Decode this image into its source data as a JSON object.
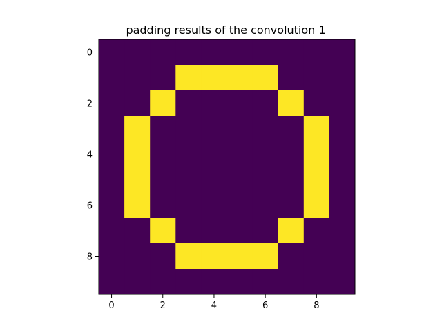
{
  "chart_data": {
    "type": "heatmap",
    "title": "padding results of the convolution 1",
    "xlabel": "",
    "ylabel": "",
    "x_ticks": [
      0,
      2,
      4,
      6,
      8
    ],
    "y_ticks": [
      0,
      2,
      4,
      6,
      8
    ],
    "xlim": [
      -0.5,
      9.5
    ],
    "ylim": [
      9.5,
      -0.5
    ],
    "colormap": "viridis",
    "low_color": "#440154",
    "high_color": "#fde725",
    "grid": false,
    "legend": "none",
    "matrix": [
      [
        0,
        0,
        0,
        0,
        0,
        0,
        0,
        0,
        0,
        0
      ],
      [
        0,
        0,
        0,
        1,
        1,
        1,
        1,
        0,
        0,
        0
      ],
      [
        0,
        0,
        1,
        0,
        0,
        0,
        0,
        1,
        0,
        0
      ],
      [
        0,
        1,
        0,
        0,
        0,
        0,
        0,
        0,
        1,
        0
      ],
      [
        0,
        1,
        0,
        0,
        0,
        0,
        0,
        0,
        1,
        0
      ],
      [
        0,
        1,
        0,
        0,
        0,
        0,
        0,
        0,
        1,
        0
      ],
      [
        0,
        1,
        0,
        0,
        0,
        0,
        0,
        0,
        1,
        0
      ],
      [
        0,
        0,
        1,
        0,
        0,
        0,
        0,
        1,
        0,
        0
      ],
      [
        0,
        0,
        0,
        1,
        1,
        1,
        1,
        0,
        0,
        0
      ],
      [
        0,
        0,
        0,
        0,
        0,
        0,
        0,
        0,
        0,
        0
      ]
    ]
  }
}
